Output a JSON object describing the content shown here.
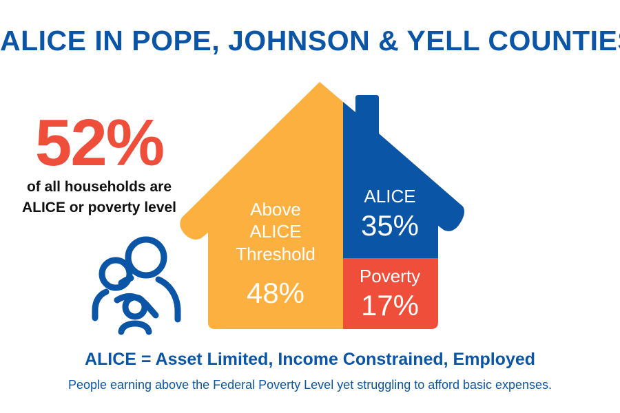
{
  "title": "ALICE IN POPE, JOHNSON & YELL COUNTIES",
  "stat": {
    "value": "52%",
    "label_line1": "of all households are",
    "label_line2": "ALICE or poverty level"
  },
  "chart_data": {
    "type": "bar",
    "categories": [
      "Above ALICE Threshold",
      "ALICE",
      "Poverty"
    ],
    "values": [
      48,
      35,
      17
    ],
    "unit": "%",
    "segments": [
      {
        "label_lines": [
          "Above",
          "ALICE",
          "Threshold"
        ],
        "value": 48,
        "value_label": "48%",
        "color": "#FBB040"
      },
      {
        "label_lines": [
          "ALICE"
        ],
        "value": 35,
        "value_label": "35%",
        "color": "#0B55A6"
      },
      {
        "label_lines": [
          "Poverty"
        ],
        "value": 17,
        "value_label": "17%",
        "color": "#EF4E3B"
      }
    ]
  },
  "definition": "ALICE = Asset Limited, Income Constrained, Employed",
  "subtitle": "People earning above the Federal Poverty Level yet struggling to afford basic expenses.",
  "colors": {
    "title_blue": "#0B55A6",
    "accent_red": "#EF4E3B",
    "above_yellow": "#FBB040",
    "alice_blue": "#0B55A6",
    "poverty_red": "#EF4E3B"
  },
  "icons": {
    "family": "family-icon"
  }
}
